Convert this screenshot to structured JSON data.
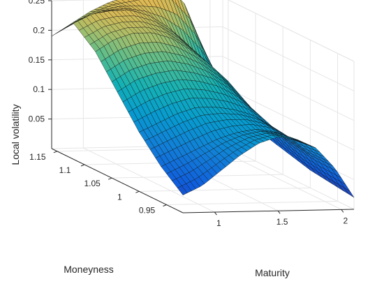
{
  "chart_data": {
    "type": "surface",
    "title": "",
    "xlabel": "Maturity",
    "ylabel": "Moneyness",
    "zlabel": "Local volatility",
    "x_ticks": [
      "1",
      "1.5",
      "2"
    ],
    "y_ticks": [
      "0.95",
      "1",
      "1.05",
      "1.1",
      "1.15"
    ],
    "z_ticks": [
      "0.05",
      "0.1",
      "0.15",
      "0.2",
      "0.25"
    ],
    "xlim": [
      0.75,
      2.1
    ],
    "ylim": [
      0.92,
      1.16
    ],
    "zlim": [
      0,
      0.25
    ],
    "grid": true,
    "colormap": "parula",
    "maturity": [
      0.75,
      0.9,
      1.05,
      1.2,
      1.35,
      1.5,
      1.65,
      1.8,
      1.95,
      2.1
    ],
    "moneyness": [
      0.92,
      0.96,
      1.0,
      1.04,
      1.08,
      1.12,
      1.16
    ],
    "local_volatility": [
      [
        0.03,
        0.045,
        0.07,
        0.095,
        0.115,
        0.125,
        0.12,
        0.105,
        0.07,
        0.02
      ],
      [
        0.06,
        0.075,
        0.09,
        0.105,
        0.115,
        0.12,
        0.115,
        0.1,
        0.07,
        0.025
      ],
      [
        0.1,
        0.115,
        0.13,
        0.14,
        0.14,
        0.135,
        0.125,
        0.105,
        0.075,
        0.03
      ],
      [
        0.15,
        0.17,
        0.18,
        0.185,
        0.18,
        0.17,
        0.15,
        0.12,
        0.085,
        0.04
      ],
      [
        0.2,
        0.22,
        0.23,
        0.23,
        0.22,
        0.2,
        0.175,
        0.145,
        0.1,
        0.05
      ],
      [
        0.23,
        0.245,
        0.25,
        0.25,
        0.24,
        0.22,
        0.19,
        0.155,
        0.11,
        0.055
      ],
      [
        0.19,
        0.21,
        0.23,
        0.245,
        0.255,
        0.27,
        0.275,
        0.24,
        0.16,
        0.07
      ]
    ]
  }
}
